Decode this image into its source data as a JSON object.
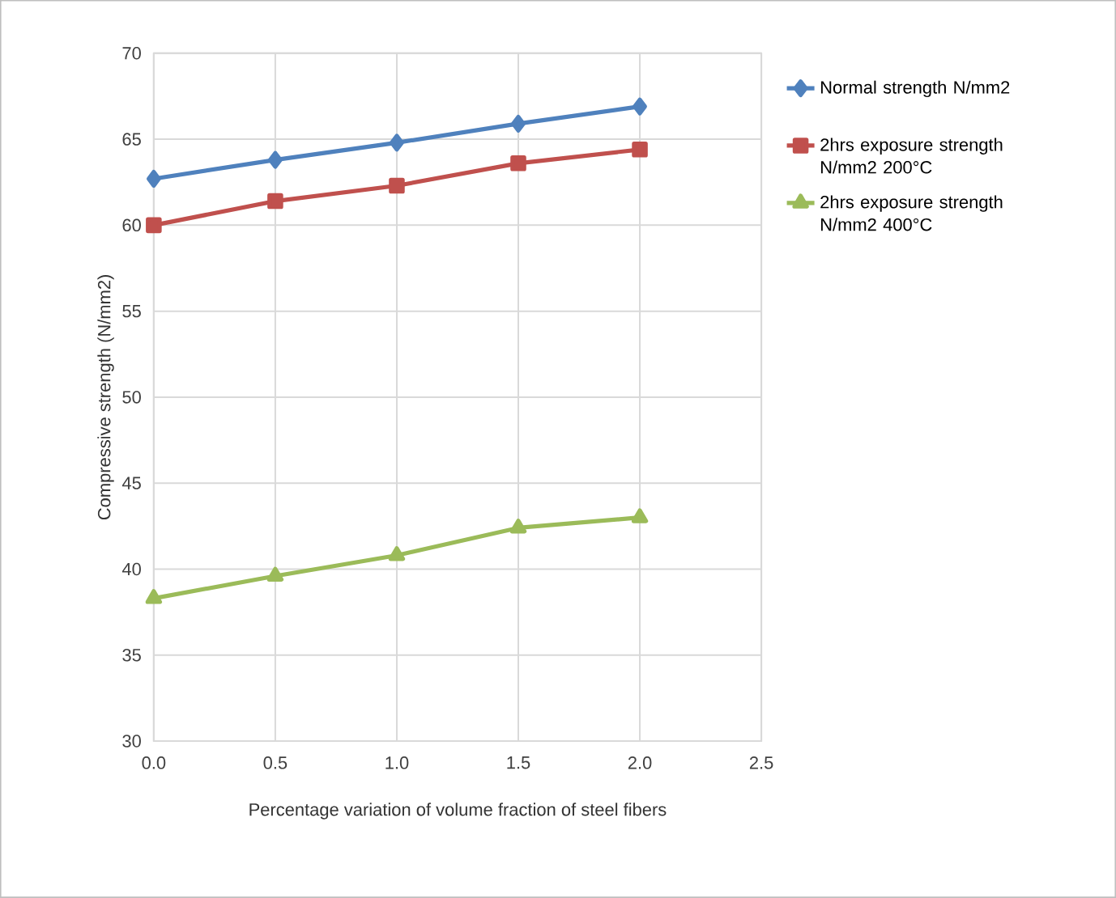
{
  "chart_data": {
    "type": "line",
    "xlabel": "Percentage variation of volume fraction of steel fibers",
    "ylabel": "Compressive strength (N/mm2)",
    "x": [
      0,
      0.5,
      1.0,
      1.5,
      2.0
    ],
    "xlim": [
      0,
      2.5
    ],
    "xticks": [
      {
        "value": 0,
        "label": "0.0"
      },
      {
        "value": 0.5,
        "label": "0.5"
      },
      {
        "value": 1.0,
        "label": "1.0"
      },
      {
        "value": 1.5,
        "label": "1.5"
      },
      {
        "value": 2.0,
        "label": "2.0"
      },
      {
        "value": 2.5,
        "label": "2.5"
      }
    ],
    "ylim": [
      30,
      70
    ],
    "yticks": [
      30,
      35,
      40,
      45,
      50,
      55,
      60,
      65,
      70
    ],
    "grid": true,
    "legend": "right",
    "series": [
      {
        "name": "Normal strength N/mm2",
        "color": "#4f81bd",
        "marker": "diamond",
        "values": [
          62.7,
          63.8,
          64.8,
          65.9,
          66.9
        ]
      },
      {
        "name": "2hrs exposure strength N/mm2 200°C",
        "color": "#c0504d",
        "marker": "square",
        "values": [
          60.0,
          61.4,
          62.3,
          63.6,
          64.4
        ]
      },
      {
        "name": "2hrs exposure strength N/mm2 400°C",
        "color": "#9bbb59",
        "marker": "triangle",
        "values": [
          38.3,
          39.6,
          40.8,
          42.4,
          43.0
        ]
      }
    ]
  }
}
